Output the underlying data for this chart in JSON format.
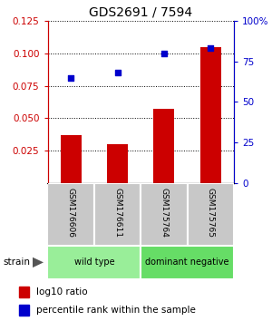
{
  "title": "GDS2691 / 7594",
  "samples": [
    "GSM176606",
    "GSM176611",
    "GSM175764",
    "GSM175765"
  ],
  "bar_values": [
    0.037,
    0.03,
    0.057,
    0.105
  ],
  "scatter_values_pct": [
    65,
    68,
    80,
    83
  ],
  "bar_color": "#cc0000",
  "scatter_color": "#0000cc",
  "ylim_left": [
    0,
    0.125
  ],
  "ylim_right": [
    0,
    100
  ],
  "yticks_left": [
    0.025,
    0.05,
    0.075,
    0.1,
    0.125
  ],
  "yticks_right": [
    0,
    25,
    50,
    75,
    100
  ],
  "ytick_labels_left": [
    "0.025",
    "0.050",
    "0.075",
    "0.100",
    "0.125"
  ],
  "ytick_labels_right": [
    "0",
    "25",
    "50",
    "75",
    "100%"
  ],
  "groups": [
    {
      "label": "wild type",
      "indices": [
        0,
        1
      ],
      "color": "#99ee99"
    },
    {
      "label": "dominant negative",
      "indices": [
        2,
        3
      ],
      "color": "#66dd66"
    }
  ],
  "strain_label": "strain",
  "legend_bar_label": "log10 ratio",
  "legend_scatter_label": "percentile rank within the sample",
  "bar_width": 0.45
}
